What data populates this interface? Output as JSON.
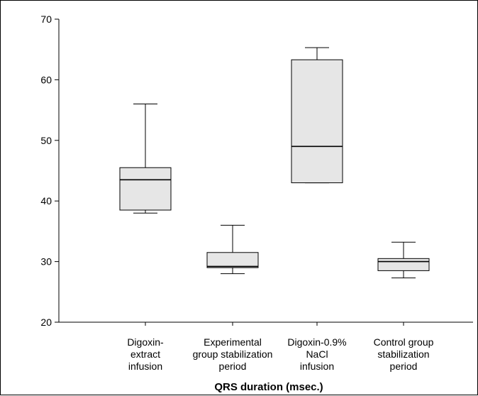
{
  "chart_data": {
    "type": "box",
    "title": "",
    "xlabel": "QRS duration (msec.)",
    "ylabel": "",
    "ylim": [
      20,
      70
    ],
    "yticks": [
      20,
      30,
      40,
      50,
      60,
      70
    ],
    "grid": false,
    "box_fill": "#e6e6e6",
    "line_color": "#000000",
    "categories": [
      {
        "lines": [
          "Digoxin-",
          "extract",
          "infusion"
        ]
      },
      {
        "lines": [
          "Experimental",
          "group stabilization",
          "period"
        ]
      },
      {
        "lines": [
          "Digoxin-0.9%",
          "NaCl",
          "infusion"
        ]
      },
      {
        "lines": [
          "Control group",
          "stabilization",
          "period"
        ]
      }
    ],
    "boxes": [
      {
        "min": 38.0,
        "q1": 38.5,
        "median": 43.5,
        "q3": 45.5,
        "max": 56.0
      },
      {
        "min": 28.0,
        "q1": 29.0,
        "median": 29.2,
        "q3": 31.5,
        "max": 36.0
      },
      {
        "min": 43.0,
        "q1": 43.0,
        "median": 49.0,
        "q3": 63.3,
        "max": 65.3
      },
      {
        "min": 27.3,
        "q1": 28.5,
        "median": 30.0,
        "q3": 30.5,
        "max": 33.2
      }
    ]
  }
}
